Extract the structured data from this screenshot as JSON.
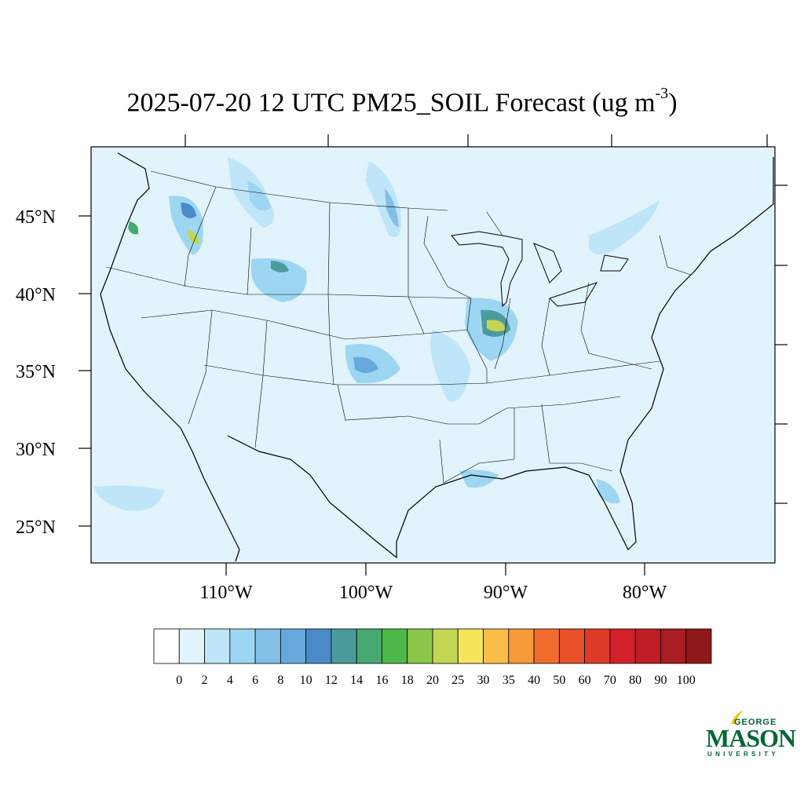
{
  "title": {
    "main": "2025-07-20 12 UTC PM25_SOIL Forecast (ug m",
    "sup": "-3",
    "close": ")"
  },
  "axes": {
    "lat_labels": [
      "45°N",
      "40°N",
      "35°N",
      "30°N",
      "25°N"
    ],
    "lon_labels": [
      "110°W",
      "100°W",
      "90°W",
      "80°W"
    ]
  },
  "colorbar": {
    "labels": [
      "0",
      "2",
      "4",
      "6",
      "8",
      "10",
      "12",
      "14",
      "16",
      "18",
      "20",
      "25",
      "30",
      "35",
      "40",
      "50",
      "60",
      "70",
      "80",
      "90",
      "100"
    ],
    "colors": [
      "#ffffff",
      "#e1f3fb",
      "#bfe6f8",
      "#9dd6f3",
      "#82bee6",
      "#66a9dc",
      "#4a8ac8",
      "#4b9b9c",
      "#47a870",
      "#4db849",
      "#8bc64a",
      "#c3d653",
      "#f6e55a",
      "#f8be48",
      "#f69a3a",
      "#f06c2c",
      "#e8502a",
      "#de3a28",
      "#d22128",
      "#bd1e25",
      "#a71d22",
      "#8f1818"
    ]
  },
  "logo": {
    "line1": "GEORGE",
    "line2": "MASON",
    "line3": "UNIVERSITY"
  },
  "colors": {
    "background_field": "#e1f3fb",
    "accent_green": "#006633",
    "accent_gold": "#f2c500"
  }
}
